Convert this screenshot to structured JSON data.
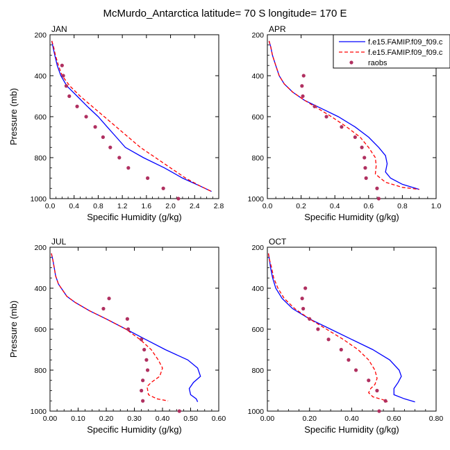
{
  "figure": {
    "title": "McMurdo_Antarctica  latitude= 70 S longitude= 170 E"
  },
  "legend": {
    "entries": [
      {
        "label": "f.e15.FAMIP.f09_f09.c",
        "style": "line",
        "color": "#0000ff"
      },
      {
        "label": "f.e15.FAMIP.f09_f09.c",
        "style": "dashed",
        "color": "#ff0000"
      },
      {
        "label": "raobs",
        "style": "marker",
        "color": "#b03060"
      }
    ]
  },
  "colors": {
    "model1": "#0000ff",
    "model2": "#ff0000",
    "obs": "#b03060"
  },
  "chart_data": [
    {
      "type": "line",
      "title": "JAN",
      "xlabel": "Specific Humidity (g/kg)",
      "ylabel": "Pressure (mb)",
      "xlim": [
        0,
        2.8
      ],
      "ylim": [
        200,
        1000
      ],
      "y_inverted": true,
      "xticks": [
        "0.0",
        "0.4",
        "0.8",
        "1.2",
        "1.6",
        "2.0",
        "2.4",
        "2.8"
      ],
      "yticks": [
        "200",
        "400",
        "600",
        "800",
        "1000"
      ],
      "series": [
        {
          "kind": "model1",
          "points": [
            [
              0.03,
              230
            ],
            [
              0.05,
              260
            ],
            [
              0.08,
              300
            ],
            [
              0.12,
              350
            ],
            [
              0.18,
              400
            ],
            [
              0.28,
              450
            ],
            [
              0.45,
              500
            ],
            [
              0.62,
              550
            ],
            [
              0.8,
              600
            ],
            [
              0.95,
              650
            ],
            [
              1.1,
              700
            ],
            [
              1.25,
              750
            ],
            [
              1.55,
              800
            ],
            [
              1.9,
              850
            ],
            [
              2.2,
              900
            ],
            [
              2.5,
              940
            ],
            [
              2.68,
              965
            ]
          ]
        },
        {
          "kind": "model2",
          "points": [
            [
              0.03,
              230
            ],
            [
              0.06,
              260
            ],
            [
              0.09,
              300
            ],
            [
              0.14,
              350
            ],
            [
              0.2,
              400
            ],
            [
              0.33,
              450
            ],
            [
              0.5,
              500
            ],
            [
              0.7,
              550
            ],
            [
              0.9,
              600
            ],
            [
              1.1,
              650
            ],
            [
              1.3,
              700
            ],
            [
              1.5,
              750
            ],
            [
              1.75,
              800
            ],
            [
              2.0,
              850
            ],
            [
              2.25,
              900
            ],
            [
              2.5,
              940
            ],
            [
              2.68,
              965
            ]
          ]
        },
        {
          "kind": "obs",
          "points": [
            [
              0.2,
              350
            ],
            [
              0.22,
              400
            ],
            [
              0.27,
              450
            ],
            [
              0.32,
              500
            ],
            [
              0.45,
              550
            ],
            [
              0.6,
              600
            ],
            [
              0.75,
              650
            ],
            [
              0.88,
              700
            ],
            [
              1.0,
              750
            ],
            [
              1.15,
              800
            ],
            [
              1.3,
              850
            ],
            [
              1.62,
              900
            ],
            [
              1.88,
              950
            ],
            [
              2.13,
              1000
            ]
          ]
        }
      ]
    },
    {
      "type": "line",
      "title": "APR",
      "xlabel": "Specific Humidity (g/kg)",
      "ylabel": "",
      "xlim": [
        0,
        1.0
      ],
      "ylim": [
        200,
        1000
      ],
      "y_inverted": true,
      "xticks": [
        "0.0",
        "0.2",
        "0.4",
        "0.6",
        "0.8",
        "1.0"
      ],
      "yticks": [
        "200",
        "400",
        "600",
        "800",
        "1000"
      ],
      "series": [
        {
          "kind": "model1",
          "points": [
            [
              0.01,
              230
            ],
            [
              0.02,
              260
            ],
            [
              0.03,
              300
            ],
            [
              0.05,
              350
            ],
            [
              0.07,
              400
            ],
            [
              0.1,
              440
            ],
            [
              0.15,
              480
            ],
            [
              0.22,
              520
            ],
            [
              0.32,
              560
            ],
            [
              0.42,
              600
            ],
            [
              0.52,
              650
            ],
            [
              0.6,
              700
            ],
            [
              0.66,
              750
            ],
            [
              0.7,
              790
            ],
            [
              0.71,
              830
            ],
            [
              0.7,
              870
            ],
            [
              0.73,
              900
            ],
            [
              0.8,
              930
            ],
            [
              0.9,
              955
            ]
          ]
        },
        {
          "kind": "model2",
          "points": [
            [
              0.01,
              230
            ],
            [
              0.02,
              260
            ],
            [
              0.03,
              300
            ],
            [
              0.05,
              350
            ],
            [
              0.07,
              400
            ],
            [
              0.1,
              440
            ],
            [
              0.15,
              480
            ],
            [
              0.22,
              520
            ],
            [
              0.3,
              560
            ],
            [
              0.38,
              600
            ],
            [
              0.47,
              650
            ],
            [
              0.55,
              700
            ],
            [
              0.6,
              750
            ],
            [
              0.64,
              800
            ],
            [
              0.645,
              840
            ],
            [
              0.64,
              880
            ],
            [
              0.7,
              920
            ],
            [
              0.8,
              945
            ],
            [
              0.9,
              955
            ]
          ]
        },
        {
          "kind": "obs",
          "points": [
            [
              0.215,
              400
            ],
            [
              0.205,
              450
            ],
            [
              0.21,
              500
            ],
            [
              0.28,
              550
            ],
            [
              0.35,
              600
            ],
            [
              0.44,
              650
            ],
            [
              0.52,
              700
            ],
            [
              0.56,
              750
            ],
            [
              0.575,
              800
            ],
            [
              0.58,
              850
            ],
            [
              0.585,
              900
            ],
            [
              0.65,
              950
            ],
            [
              0.66,
              1000
            ]
          ]
        }
      ]
    },
    {
      "type": "line",
      "title": "JUL",
      "xlabel": "Specific Humidity (g/kg)",
      "ylabel": "Pressure (mb)",
      "xlim": [
        0,
        0.6
      ],
      "ylim": [
        200,
        1000
      ],
      "y_inverted": true,
      "xticks": [
        "0.00",
        "0.10",
        "0.20",
        "0.30",
        "0.40",
        "0.50",
        "0.60"
      ],
      "yticks": [
        "200",
        "400",
        "600",
        "800",
        "1000"
      ],
      "series": [
        {
          "kind": "model1",
          "points": [
            [
              0.005,
              230
            ],
            [
              0.01,
              260
            ],
            [
              0.015,
              300
            ],
            [
              0.02,
              340
            ],
            [
              0.03,
              380
            ],
            [
              0.045,
              410
            ],
            [
              0.06,
              440
            ],
            [
              0.09,
              470
            ],
            [
              0.14,
              510
            ],
            [
              0.2,
              550
            ],
            [
              0.27,
              600
            ],
            [
              0.34,
              650
            ],
            [
              0.41,
              700
            ],
            [
              0.49,
              750
            ],
            [
              0.525,
              790
            ],
            [
              0.535,
              830
            ],
            [
              0.51,
              860
            ],
            [
              0.495,
              890
            ],
            [
              0.5,
              920
            ],
            [
              0.52,
              940
            ],
            [
              0.525,
              955
            ]
          ]
        },
        {
          "kind": "model2",
          "points": [
            [
              0.005,
              230
            ],
            [
              0.01,
              260
            ],
            [
              0.015,
              300
            ],
            [
              0.02,
              340
            ],
            [
              0.03,
              380
            ],
            [
              0.045,
              410
            ],
            [
              0.06,
              440
            ],
            [
              0.09,
              470
            ],
            [
              0.14,
              510
            ],
            [
              0.2,
              550
            ],
            [
              0.27,
              600
            ],
            [
              0.32,
              650
            ],
            [
              0.36,
              700
            ],
            [
              0.385,
              750
            ],
            [
              0.4,
              790
            ],
            [
              0.39,
              830
            ],
            [
              0.36,
              860
            ],
            [
              0.345,
              880
            ],
            [
              0.35,
              920
            ],
            [
              0.38,
              940
            ],
            [
              0.42,
              950
            ]
          ]
        },
        {
          "kind": "obs",
          "points": [
            [
              0.21,
              450
            ],
            [
              0.19,
              500
            ],
            [
              0.275,
              550
            ],
            [
              0.278,
              600
            ],
            [
              0.325,
              650
            ],
            [
              0.335,
              700
            ],
            [
              0.343,
              750
            ],
            [
              0.347,
              800
            ],
            [
              0.33,
              850
            ],
            [
              0.325,
              900
            ],
            [
              0.33,
              950
            ],
            [
              0.46,
              1000
            ]
          ]
        }
      ]
    },
    {
      "type": "line",
      "title": "OCT",
      "xlabel": "Specific Humidity (g/kg)",
      "ylabel": "",
      "xlim": [
        0,
        0.8
      ],
      "ylim": [
        200,
        1000
      ],
      "y_inverted": true,
      "xticks": [
        "0.00",
        "0.20",
        "0.40",
        "0.60",
        "0.80"
      ],
      "yticks": [
        "200",
        "400",
        "600",
        "800",
        "1000"
      ],
      "series": [
        {
          "kind": "model1",
          "points": [
            [
              0.005,
              230
            ],
            [
              0.01,
              260
            ],
            [
              0.015,
              300
            ],
            [
              0.025,
              350
            ],
            [
              0.04,
              400
            ],
            [
              0.07,
              450
            ],
            [
              0.12,
              500
            ],
            [
              0.2,
              550
            ],
            [
              0.3,
              600
            ],
            [
              0.4,
              650
            ],
            [
              0.5,
              700
            ],
            [
              0.58,
              750
            ],
            [
              0.625,
              800
            ],
            [
              0.635,
              830
            ],
            [
              0.62,
              860
            ],
            [
              0.6,
              890
            ],
            [
              0.6,
              920
            ],
            [
              0.65,
              940
            ],
            [
              0.7,
              955
            ]
          ]
        },
        {
          "kind": "model2",
          "points": [
            [
              0.005,
              230
            ],
            [
              0.01,
              260
            ],
            [
              0.02,
              300
            ],
            [
              0.03,
              350
            ],
            [
              0.05,
              400
            ],
            [
              0.08,
              450
            ],
            [
              0.13,
              500
            ],
            [
              0.2,
              550
            ],
            [
              0.28,
              600
            ],
            [
              0.36,
              650
            ],
            [
              0.43,
              700
            ],
            [
              0.48,
              750
            ],
            [
              0.51,
              800
            ],
            [
              0.52,
              840
            ],
            [
              0.51,
              870
            ],
            [
              0.49,
              890
            ],
            [
              0.48,
              910
            ],
            [
              0.5,
              930
            ],
            [
              0.55,
              945
            ],
            [
              0.57,
              955
            ]
          ]
        },
        {
          "kind": "obs",
          "points": [
            [
              0.18,
              400
            ],
            [
              0.165,
              450
            ],
            [
              0.17,
              500
            ],
            [
              0.2,
              550
            ],
            [
              0.24,
              600
            ],
            [
              0.29,
              650
            ],
            [
              0.35,
              700
            ],
            [
              0.385,
              750
            ],
            [
              0.42,
              800
            ],
            [
              0.48,
              850
            ],
            [
              0.52,
              900
            ],
            [
              0.56,
              950
            ],
            [
              0.53,
              1000
            ]
          ]
        }
      ]
    }
  ]
}
